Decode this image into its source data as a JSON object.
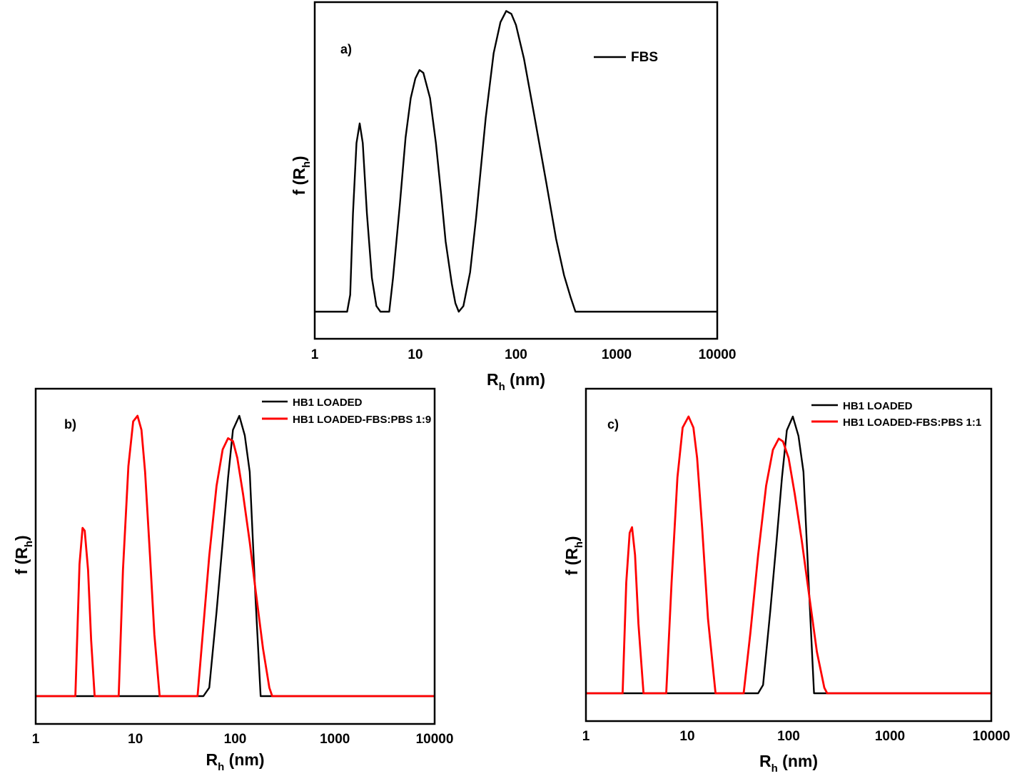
{
  "chart_data": [
    {
      "panel": "a)",
      "type": "line",
      "xlabel": "R",
      "xlabel_sub": "h",
      "xlabel_unit": " (nm)",
      "ylabel": "f (R",
      "ylabel_sub": "h",
      "ylabel_close": ")",
      "xscale": "log",
      "xlim": [
        1,
        10000
      ],
      "ylim": [
        0,
        1.1
      ],
      "xticks": [
        "1",
        "10",
        "100",
        "1000",
        "10000"
      ],
      "legend_position": "top-right",
      "series": [
        {
          "name": "FBS",
          "color": "#000000",
          "x": [
            1,
            2.1,
            2.25,
            2.4,
            2.6,
            2.8,
            3.0,
            3.3,
            3.7,
            4.1,
            4.5,
            5.5,
            6.0,
            7.0,
            8.0,
            9.0,
            10.0,
            11.0,
            12.0,
            14.0,
            16.0,
            18.0,
            20.0,
            23.0,
            25.0,
            27.0,
            30.0,
            35.0,
            40.0,
            50.0,
            60.0,
            70.0,
            80.0,
            90.0,
            100.0,
            120.0,
            150.0,
            200.0,
            250.0,
            300.0,
            350.0,
            390.0,
            10000
          ],
          "y": [
            0,
            0,
            0.06,
            0.35,
            0.6,
            0.67,
            0.6,
            0.35,
            0.12,
            0.02,
            0,
            0,
            0.12,
            0.38,
            0.62,
            0.76,
            0.83,
            0.86,
            0.85,
            0.76,
            0.6,
            0.42,
            0.25,
            0.1,
            0.03,
            0,
            0.02,
            0.14,
            0.33,
            0.69,
            0.92,
            1.03,
            1.07,
            1.06,
            1.02,
            0.9,
            0.71,
            0.46,
            0.26,
            0.13,
            0.05,
            0,
            0
          ]
        }
      ]
    },
    {
      "panel": "b)",
      "type": "line",
      "xlabel": "R",
      "xlabel_sub": "h",
      "xlabel_unit": " (nm)",
      "ylabel": "f (R",
      "ylabel_sub": "h",
      "ylabel_close": ")",
      "xscale": "log",
      "xlim": [
        1,
        10000
      ],
      "ylim": [
        0,
        1.1
      ],
      "xticks": [
        "1",
        "10",
        "100",
        "1000",
        "10000"
      ],
      "legend_position": "top-right",
      "series": [
        {
          "name": "HB1 LOADED",
          "color": "#000000",
          "x": [
            1,
            48,
            55,
            65,
            75,
            85,
            95,
            110,
            125,
            140,
            160,
            180,
            10000
          ],
          "y": [
            0,
            0,
            0.03,
            0.3,
            0.55,
            0.78,
            0.95,
            1.0,
            0.93,
            0.8,
            0.35,
            0,
            0
          ]
        },
        {
          "name": "HB1 LOADED-FBS:PBS 1:9",
          "color": "#ff0000",
          "x": [
            1,
            2.5,
            2.75,
            2.95,
            3.1,
            3.35,
            3.6,
            3.9,
            6.8,
            7.5,
            8.5,
            9.5,
            10.5,
            11.5,
            12.5,
            14.0,
            15.5,
            17.5,
            42.0,
            48.0,
            55.0,
            65.0,
            75.0,
            85.0,
            95.0,
            105.0,
            120.0,
            140.0,
            160.0,
            190.0,
            220.0,
            235.0,
            10000
          ],
          "y": [
            0,
            0,
            0.47,
            0.6,
            0.59,
            0.45,
            0.2,
            0,
            0,
            0.45,
            0.82,
            0.98,
            1.0,
            0.95,
            0.8,
            0.5,
            0.22,
            0,
            0,
            0.25,
            0.5,
            0.75,
            0.88,
            0.92,
            0.91,
            0.85,
            0.72,
            0.55,
            0.38,
            0.17,
            0.03,
            0,
            0
          ]
        }
      ]
    },
    {
      "panel": "c)",
      "type": "line",
      "xlabel": "R",
      "xlabel_sub": "h",
      "xlabel_unit": " (nm)",
      "ylabel": "f (R",
      "ylabel_sub": "h",
      "ylabel_close": ")",
      "xscale": "log",
      "xlim": [
        1,
        10000
      ],
      "ylim": [
        0,
        1.1
      ],
      "xticks": [
        "1",
        "10",
        "100",
        "1000",
        "10000"
      ],
      "legend_position": "top-right",
      "series": [
        {
          "name": "HB1 LOADED",
          "color": "#000000",
          "x": [
            1,
            50,
            56,
            66,
            76,
            86,
            96,
            110,
            125,
            140,
            160,
            178,
            10000
          ],
          "y": [
            0,
            0,
            0.03,
            0.3,
            0.55,
            0.78,
            0.95,
            1.0,
            0.93,
            0.8,
            0.35,
            0,
            0
          ]
        },
        {
          "name": "HB1 LOADED-FBS:PBS 1:1",
          "color": "#ff0000",
          "x": [
            1,
            2.3,
            2.5,
            2.7,
            2.85,
            3.05,
            3.3,
            3.7,
            6.2,
            7.0,
            8.0,
            9.0,
            10.3,
            11.5,
            12.5,
            14.0,
            16.0,
            19.0,
            36.0,
            42.0,
            50.0,
            60.0,
            70.0,
            80.0,
            88.0,
            100.0,
            115.0,
            135.0,
            160.0,
            190.0,
            225.0,
            240.0,
            10000
          ],
          "y": [
            0,
            0,
            0.4,
            0.58,
            0.6,
            0.5,
            0.25,
            0,
            0,
            0.4,
            0.78,
            0.96,
            1.0,
            0.96,
            0.85,
            0.6,
            0.27,
            0,
            0,
            0.22,
            0.5,
            0.75,
            0.88,
            0.92,
            0.91,
            0.85,
            0.72,
            0.55,
            0.35,
            0.15,
            0.02,
            0,
            0
          ]
        }
      ]
    }
  ]
}
